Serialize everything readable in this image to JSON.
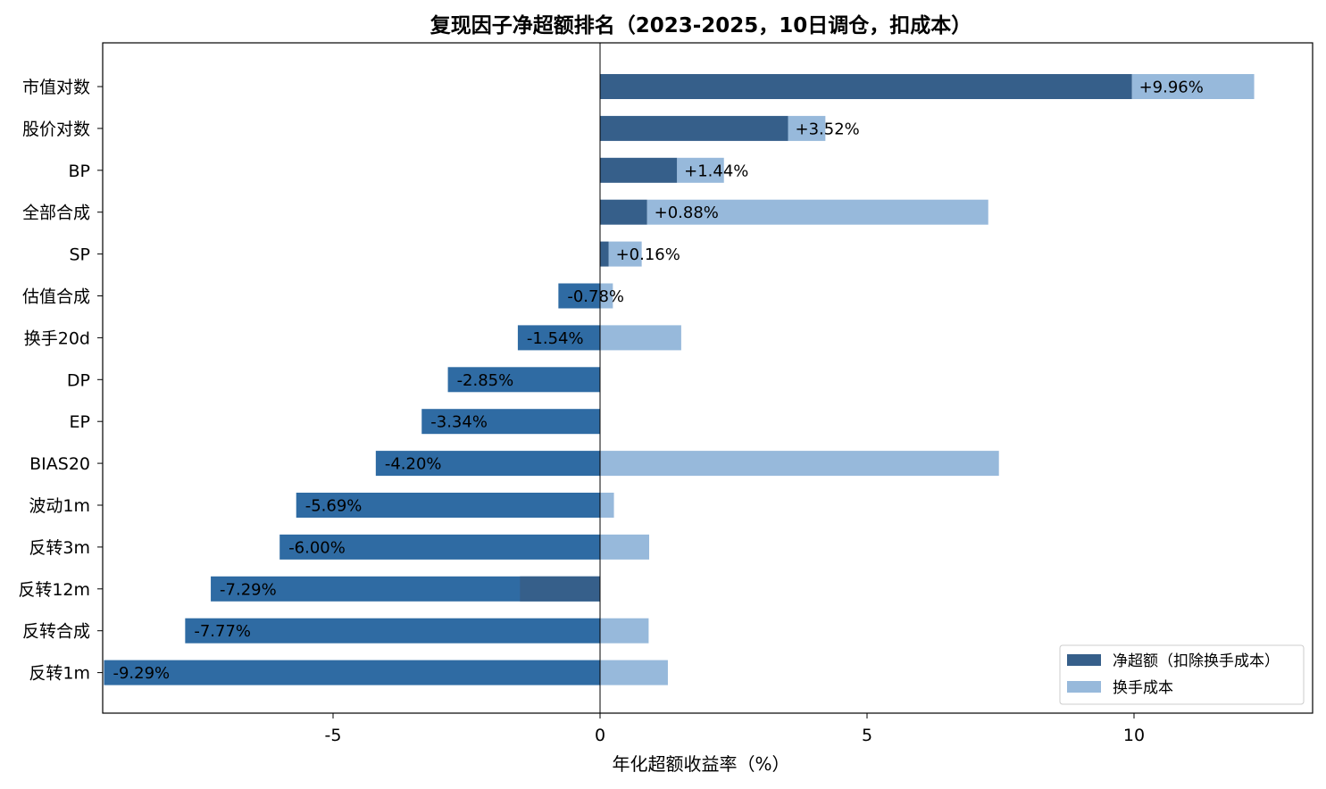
{
  "chart_data": {
    "type": "bar",
    "orientation": "horizontal",
    "stacked": true,
    "title": "复现因子净超额排名（2023-2025，10日调仓，扣成本）",
    "xlabel": "年化超额收益率（%）",
    "ylabel": "",
    "xlim": [
      -9.29,
      13.3
    ],
    "xticks": [
      {
        "value": -5,
        "label": "-5"
      },
      {
        "value": 0,
        "label": "0"
      },
      {
        "value": 5,
        "label": "5"
      },
      {
        "value": 10,
        "label": "10"
      }
    ],
    "grid": false,
    "legend_position": "bottom-right",
    "colors": {
      "net": "#365f8a",
      "net_negative": "#2f6ba3",
      "cost": "#97b9db",
      "zero_line": "#000000"
    },
    "series": [
      {
        "name": "净超额（扣除换手成本）",
        "key": "net"
      },
      {
        "name": "换手成本",
        "key": "cost"
      }
    ],
    "categories": [
      "市值对数",
      "股价对数",
      "BP",
      "全部合成",
      "SP",
      "估值合成",
      "换手20d",
      "DP",
      "EP",
      "BIAS20",
      "波动1m",
      "反转3m",
      "反转12m",
      "反转合成",
      "反转1m"
    ],
    "bars": [
      {
        "net": 9.96,
        "cost_from": 9.96,
        "cost_to": 12.25,
        "label": "+9.96%"
      },
      {
        "net": 3.52,
        "cost_from": 3.52,
        "cost_to": 4.22,
        "label": "+3.52%"
      },
      {
        "net": 1.44,
        "cost_from": 1.44,
        "cost_to": 2.32,
        "label": "+1.44%"
      },
      {
        "net": 0.88,
        "cost_from": 0.88,
        "cost_to": 7.27,
        "label": "+0.88%"
      },
      {
        "net": 0.16,
        "cost_from": 0.16,
        "cost_to": 0.78,
        "label": "+0.16%"
      },
      {
        "net": -0.78,
        "cost_from": 0,
        "cost_to": 0.24,
        "label": "-0.78%"
      },
      {
        "net": -1.54,
        "cost_from": 0,
        "cost_to": 1.52,
        "label": "-1.54%"
      },
      {
        "net": -2.85,
        "cost_from": null,
        "cost_to": null,
        "label": "-2.85%"
      },
      {
        "net": -3.34,
        "cost_from": null,
        "cost_to": null,
        "label": "-3.34%"
      },
      {
        "net": -4.2,
        "cost_from": 0,
        "cost_to": 7.47,
        "label": "-4.20%"
      },
      {
        "net": -5.69,
        "cost_from": 0,
        "cost_to": 0.26,
        "label": "-5.69%"
      },
      {
        "net": -6.0,
        "cost_from": 0,
        "cost_to": 0.92,
        "label": "-6.00%"
      },
      {
        "net": -7.29,
        "cost_from": null,
        "cost_to": null,
        "label": "-7.29%",
        "dark_overlay_from": -1.5,
        "dark_overlay_to": 0
      },
      {
        "net": -7.77,
        "cost_from": 0,
        "cost_to": 0.91,
        "label": "-7.77%"
      },
      {
        "net": -9.29,
        "cost_from": 0,
        "cost_to": 1.27,
        "label": "-9.29%"
      }
    ]
  }
}
